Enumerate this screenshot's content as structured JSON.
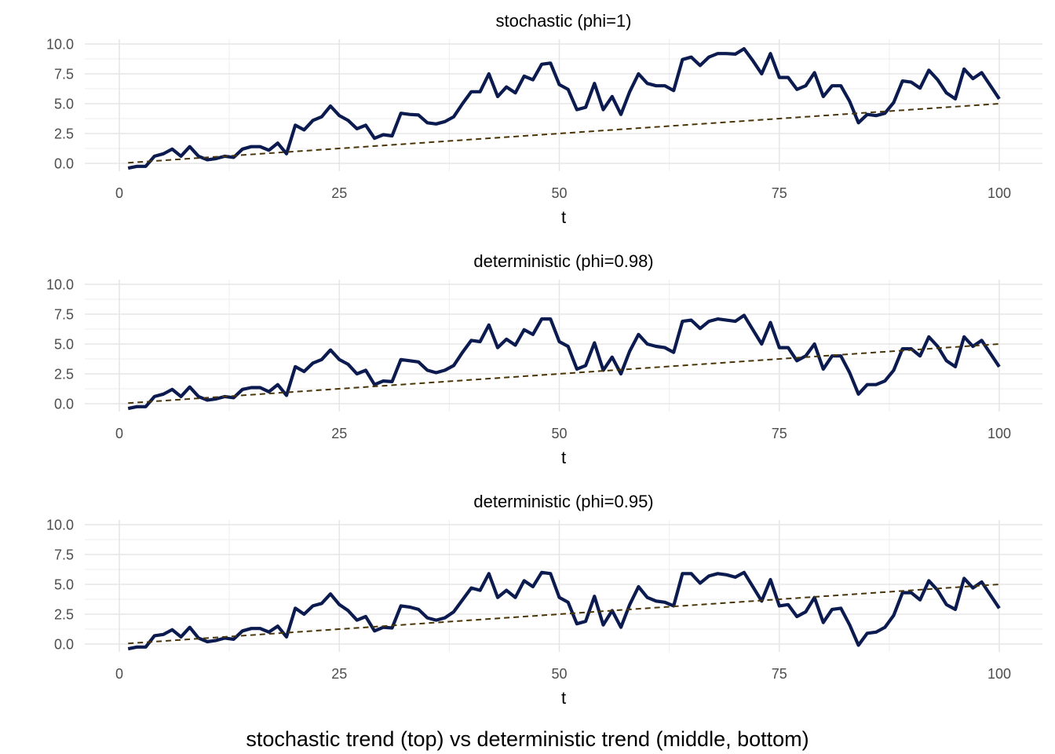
{
  "caption": "stochastic trend (top) vs deterministic trend (middle, bottom)",
  "colors": {
    "series": "#0b1a4f",
    "trend": "#4a3508"
  },
  "chart_data": [
    {
      "type": "line",
      "title": "stochastic (phi=1)",
      "xlabel": "t",
      "ylabel": "",
      "xlim": [
        0,
        100
      ],
      "ylim": [
        0,
        10
      ],
      "xticks": [
        "0",
        "25",
        "50",
        "75",
        "100"
      ],
      "yticks": [
        "0.0",
        "2.5",
        "5.0",
        "7.5",
        "10.0"
      ],
      "grid": true,
      "trend": {
        "x": [
          1,
          100
        ],
        "y": [
          0.05,
          5.0
        ]
      },
      "series": [
        {
          "x": [
            1,
            2,
            3,
            4,
            5,
            6,
            7,
            8,
            9,
            10,
            11,
            12,
            13,
            14,
            15,
            16,
            17,
            18,
            19,
            20,
            21,
            22,
            23,
            24,
            25,
            26,
            27,
            28,
            29,
            30,
            31,
            32,
            33,
            34,
            35,
            36,
            37,
            38,
            39,
            40,
            41,
            42,
            43,
            44,
            45,
            46,
            47,
            48,
            49,
            50,
            51,
            52,
            53,
            54,
            55,
            56,
            57,
            58,
            59,
            60,
            61,
            62,
            63,
            64,
            65,
            66,
            67,
            68,
            69,
            70,
            71,
            72,
            73,
            74,
            75,
            76,
            77,
            78,
            79,
            80,
            81,
            82,
            83,
            84,
            85,
            86,
            87,
            88,
            89,
            90,
            91,
            92,
            93,
            94,
            95,
            96,
            97,
            98,
            99,
            100
          ],
          "y": [
            -0.4,
            -0.25,
            -0.25,
            0.6,
            0.8,
            1.2,
            0.6,
            1.4,
            0.6,
            0.3,
            0.4,
            0.6,
            0.5,
            1.2,
            1.4,
            1.4,
            1.1,
            1.7,
            0.8,
            3.2,
            2.8,
            3.6,
            3.9,
            4.8,
            4.0,
            3.6,
            2.9,
            3.2,
            2.1,
            2.4,
            2.3,
            4.2,
            4.1,
            4.05,
            3.4,
            3.3,
            3.5,
            3.9,
            5.0,
            6.0,
            6.0,
            7.5,
            5.6,
            6.4,
            5.9,
            7.3,
            7.0,
            8.3,
            8.4,
            6.6,
            6.2,
            4.5,
            4.7,
            6.7,
            4.5,
            5.6,
            4.1,
            6.0,
            7.5,
            6.7,
            6.5,
            6.5,
            6.1,
            8.7,
            8.9,
            8.2,
            8.9,
            9.2,
            9.2,
            9.15,
            9.6,
            8.6,
            7.5,
            9.2,
            7.2,
            7.2,
            6.2,
            6.5,
            7.6,
            5.6,
            6.5,
            6.5,
            5.2,
            3.4,
            4.1,
            4.0,
            4.2,
            5.1,
            6.9,
            6.8,
            6.3,
            7.8,
            7.0,
            5.9,
            5.4,
            7.9,
            7.1,
            7.6,
            6.5,
            5.4
          ]
        }
      ]
    },
    {
      "type": "line",
      "title": "deterministic (phi=0.98)",
      "xlabel": "t",
      "ylabel": "",
      "xlim": [
        0,
        100
      ],
      "ylim": [
        0,
        10
      ],
      "xticks": [
        "0",
        "25",
        "50",
        "75",
        "100"
      ],
      "yticks": [
        "0.0",
        "2.5",
        "5.0",
        "7.5",
        "10.0"
      ],
      "grid": true,
      "trend": {
        "x": [
          1,
          100
        ],
        "y": [
          0.05,
          5.0
        ]
      },
      "series": [
        {
          "x": [
            1,
            2,
            3,
            4,
            5,
            6,
            7,
            8,
            9,
            10,
            11,
            12,
            13,
            14,
            15,
            16,
            17,
            18,
            19,
            20,
            21,
            22,
            23,
            24,
            25,
            26,
            27,
            28,
            29,
            30,
            31,
            32,
            33,
            34,
            35,
            36,
            37,
            38,
            39,
            40,
            41,
            42,
            43,
            44,
            45,
            46,
            47,
            48,
            49,
            50,
            51,
            52,
            53,
            54,
            55,
            56,
            57,
            58,
            59,
            60,
            61,
            62,
            63,
            64,
            65,
            66,
            67,
            68,
            69,
            70,
            71,
            72,
            73,
            74,
            75,
            76,
            77,
            78,
            79,
            80,
            81,
            82,
            83,
            84,
            85,
            86,
            87,
            88,
            89,
            90,
            91,
            92,
            93,
            94,
            95,
            96,
            97,
            98,
            99,
            100
          ],
          "y": [
            -0.4,
            -0.25,
            -0.25,
            0.6,
            0.8,
            1.2,
            0.6,
            1.4,
            0.6,
            0.3,
            0.4,
            0.6,
            0.5,
            1.2,
            1.35,
            1.35,
            1.0,
            1.6,
            0.7,
            3.1,
            2.7,
            3.4,
            3.7,
            4.5,
            3.7,
            3.3,
            2.5,
            2.8,
            1.6,
            1.9,
            1.85,
            3.7,
            3.6,
            3.5,
            2.8,
            2.6,
            2.8,
            3.2,
            4.3,
            5.3,
            5.2,
            6.6,
            4.7,
            5.4,
            4.9,
            6.2,
            5.8,
            7.1,
            7.1,
            5.2,
            4.8,
            2.9,
            3.2,
            5.1,
            2.8,
            3.9,
            2.5,
            4.4,
            5.8,
            5.0,
            4.8,
            4.7,
            4.3,
            6.9,
            7.0,
            6.3,
            6.9,
            7.1,
            7.0,
            6.9,
            7.4,
            6.2,
            5.0,
            6.8,
            4.7,
            4.7,
            3.6,
            4.0,
            5.0,
            2.9,
            4.0,
            4.0,
            2.6,
            0.8,
            1.6,
            1.6,
            1.9,
            2.8,
            4.6,
            4.6,
            4.0,
            5.6,
            4.8,
            3.6,
            3.1,
            5.6,
            4.8,
            5.3,
            4.2,
            3.1
          ]
        }
      ]
    },
    {
      "type": "line",
      "title": "deterministic (phi=0.95)",
      "xlabel": "t",
      "ylabel": "",
      "xlim": [
        0,
        100
      ],
      "ylim": [
        0,
        10
      ],
      "xticks": [
        "0",
        "25",
        "50",
        "75",
        "100"
      ],
      "yticks": [
        "0.0",
        "2.5",
        "5.0",
        "7.5",
        "10.0"
      ],
      "grid": true,
      "trend": {
        "x": [
          1,
          100
        ],
        "y": [
          0.05,
          5.0
        ]
      },
      "series": [
        {
          "x": [
            1,
            2,
            3,
            4,
            5,
            6,
            7,
            8,
            9,
            10,
            11,
            12,
            13,
            14,
            15,
            16,
            17,
            18,
            19,
            20,
            21,
            22,
            23,
            24,
            25,
            26,
            27,
            28,
            29,
            30,
            31,
            32,
            33,
            34,
            35,
            36,
            37,
            38,
            39,
            40,
            41,
            42,
            43,
            44,
            45,
            46,
            47,
            48,
            49,
            50,
            51,
            52,
            53,
            54,
            55,
            56,
            57,
            58,
            59,
            60,
            61,
            62,
            63,
            64,
            65,
            66,
            67,
            68,
            69,
            70,
            71,
            72,
            73,
            74,
            75,
            76,
            77,
            78,
            79,
            80,
            81,
            82,
            83,
            84,
            85,
            86,
            87,
            88,
            89,
            90,
            91,
            92,
            93,
            94,
            95,
            96,
            97,
            98,
            99,
            100
          ],
          "y": [
            -0.4,
            -0.25,
            -0.25,
            0.7,
            0.8,
            1.2,
            0.6,
            1.4,
            0.5,
            0.2,
            0.3,
            0.5,
            0.4,
            1.1,
            1.3,
            1.3,
            1.0,
            1.5,
            0.6,
            3.0,
            2.5,
            3.2,
            3.4,
            4.2,
            3.3,
            2.8,
            2.0,
            2.3,
            1.1,
            1.4,
            1.35,
            3.2,
            3.1,
            2.9,
            2.2,
            2.0,
            2.2,
            2.7,
            3.7,
            4.7,
            4.5,
            5.9,
            3.9,
            4.5,
            3.9,
            5.3,
            4.8,
            6.0,
            5.9,
            3.9,
            3.5,
            1.7,
            1.9,
            4.0,
            1.6,
            2.8,
            1.4,
            3.3,
            4.8,
            3.9,
            3.6,
            3.5,
            3.2,
            5.9,
            5.9,
            5.1,
            5.7,
            5.9,
            5.8,
            5.6,
            6.0,
            4.8,
            3.6,
            5.4,
            3.2,
            3.3,
            2.3,
            2.7,
            3.9,
            1.8,
            2.9,
            3.0,
            1.6,
            -0.1,
            0.9,
            1.0,
            1.4,
            2.4,
            4.3,
            4.3,
            3.7,
            5.3,
            4.5,
            3.3,
            2.9,
            5.5,
            4.7,
            5.2,
            4.1,
            3.0
          ]
        }
      ]
    }
  ]
}
